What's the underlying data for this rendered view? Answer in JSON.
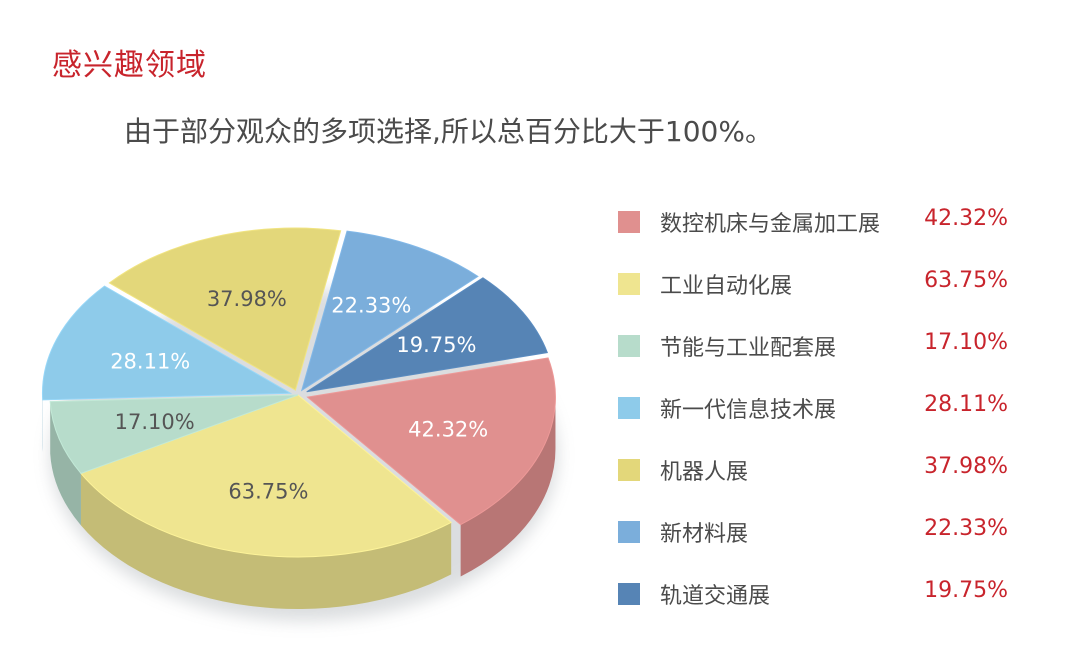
{
  "title": "感兴趣领域",
  "subtitle": "由于部分观众的多项选择,所以总百分比大于100%。",
  "chart_data": {
    "type": "pie",
    "categories": [
      "数控机床与金属加工展",
      "工业自动化展",
      "节能与工业配套展",
      "新一代信息技术展",
      "机器人展",
      "新材料展",
      "轨道交通展"
    ],
    "values": [
      42.32,
      63.75,
      17.1,
      28.11,
      37.98,
      22.33,
      19.75
    ],
    "labels": [
      "42.32%",
      "63.75%",
      "17.10%",
      "28.11%",
      "37.98%",
      "22.33%",
      "19.75%"
    ],
    "colors": [
      "#e0908f",
      "#efe590",
      "#b7dccb",
      "#8ecbea",
      "#e3d77a",
      "#7baedb",
      "#5684b5"
    ],
    "legend": "right"
  }
}
